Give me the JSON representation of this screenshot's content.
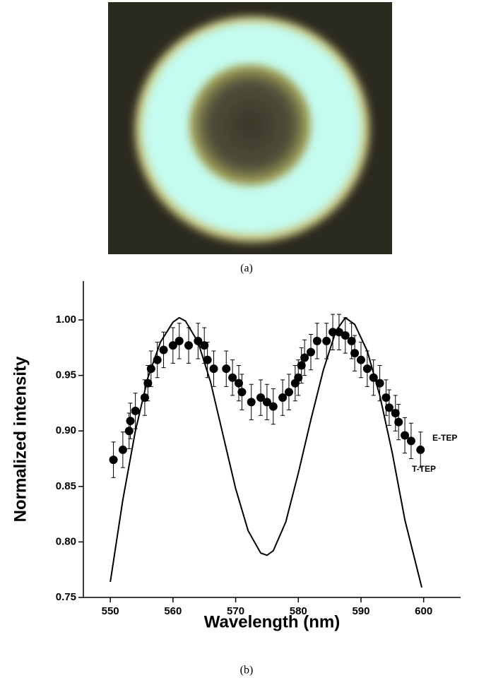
{
  "panel_a": {
    "caption": "(a)"
  },
  "panel_b": {
    "caption": "(b)"
  },
  "chart_data": {
    "type": "line",
    "x_label": "Wavelength (nm)",
    "y_label": "Normalized intensity",
    "xlim": [
      545.7,
      605.9
    ],
    "ylim": [
      0.75,
      1.035
    ],
    "xticks": [
      550,
      560,
      570,
      580,
      590,
      600
    ],
    "yticks": [
      0.75,
      {
        "value": 0.8,
        "label": "0.80"
      },
      0.85,
      {
        "value": 0.9,
        "label": "0.90"
      },
      0.95,
      {
        "value": 1.0,
        "label": "1.00"
      }
    ],
    "series": [
      {
        "name": "E-TEP",
        "type": "errorbar",
        "color": "#000000",
        "x": [
          550.5,
          552,
          553,
          553.2,
          554,
          555.5,
          556,
          556.5,
          557.5,
          558.5,
          560,
          561,
          562.5,
          564,
          565,
          565.5,
          566.5,
          568.5,
          569.5,
          570.5,
          571,
          572.5,
          574,
          575,
          576,
          577.5,
          578.5,
          579.5,
          580,
          580.5,
          581,
          582,
          583,
          584.5,
          585.5,
          586.5,
          587.5,
          588.5,
          589,
          590,
          591,
          592,
          593,
          594,
          594.5,
          595.5,
          596,
          597,
          598,
          599.5
        ],
        "values": [
          0.874,
          0.883,
          0.9,
          0.909,
          0.918,
          0.93,
          0.943,
          0.956,
          0.964,
          0.973,
          0.977,
          0.981,
          0.977,
          0.981,
          0.977,
          0.964,
          0.956,
          0.956,
          0.948,
          0.943,
          0.935,
          0.926,
          0.93,
          0.926,
          0.922,
          0.93,
          0.935,
          0.943,
          0.948,
          0.959,
          0.966,
          0.971,
          0.981,
          0.981,
          0.989,
          0.989,
          0.986,
          0.981,
          0.97,
          0.964,
          0.956,
          0.948,
          0.943,
          0.93,
          0.921,
          0.916,
          0.908,
          0.896,
          0.891,
          0.883
        ],
        "errors": [
          0.016,
          0.016,
          0.016,
          0.016,
          0.016,
          0.016,
          0.016,
          0.016,
          0.016,
          0.016,
          0.016,
          0.016,
          0.016,
          0.016,
          0.016,
          0.016,
          0.016,
          0.016,
          0.016,
          0.016,
          0.016,
          0.016,
          0.016,
          0.016,
          0.016,
          0.016,
          0.016,
          0.016,
          0.016,
          0.016,
          0.016,
          0.016,
          0.016,
          0.016,
          0.016,
          0.016,
          0.016,
          0.016,
          0.016,
          0.016,
          0.016,
          0.016,
          0.016,
          0.016,
          0.016,
          0.016,
          0.016,
          0.016,
          0.016,
          0.016
        ]
      },
      {
        "name": "T-TEP",
        "type": "line",
        "color": "#000000",
        "x": [
          550,
          552,
          554,
          556,
          558,
          560,
          561,
          562,
          564,
          566,
          568,
          570,
          572,
          574,
          575,
          576,
          578,
          580,
          582,
          584,
          586,
          587.5,
          589,
          591,
          593,
          595,
          597,
          599.7
        ],
        "values": [
          0.764,
          0.838,
          0.9,
          0.948,
          0.98,
          0.998,
          1.002,
          0.999,
          0.98,
          0.944,
          0.896,
          0.848,
          0.81,
          0.79,
          0.788,
          0.792,
          0.818,
          0.862,
          0.91,
          0.955,
          0.99,
          1.002,
          0.996,
          0.972,
          0.932,
          0.88,
          0.82,
          0.759
        ]
      }
    ]
  }
}
